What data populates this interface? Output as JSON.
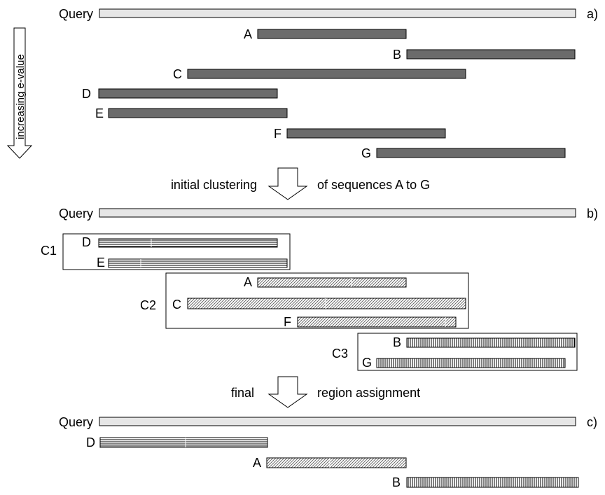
{
  "panels": {
    "a": {
      "marker": "a)",
      "query_label": "Query"
    },
    "b": {
      "marker": "b)",
      "query_label": "Query"
    },
    "c": {
      "marker": "c)",
      "query_label": "Query"
    }
  },
  "side_arrow_label": "increasing e-value",
  "sequences": {
    "A": "A",
    "B": "B",
    "C": "C",
    "D": "D",
    "E": "E",
    "F": "F",
    "G": "G"
  },
  "clusters": {
    "C1": "C1",
    "C2": "C2",
    "C3": "C3"
  },
  "transitions": {
    "clustering": {
      "left": "initial clustering",
      "right": "of sequences A to G"
    },
    "assignment": {
      "left": "final",
      "right": "region assignment"
    }
  },
  "colors": {
    "query_fill": "#e6e6e6",
    "hit_fill": "#6b6b6b",
    "outline": "#000000"
  }
}
